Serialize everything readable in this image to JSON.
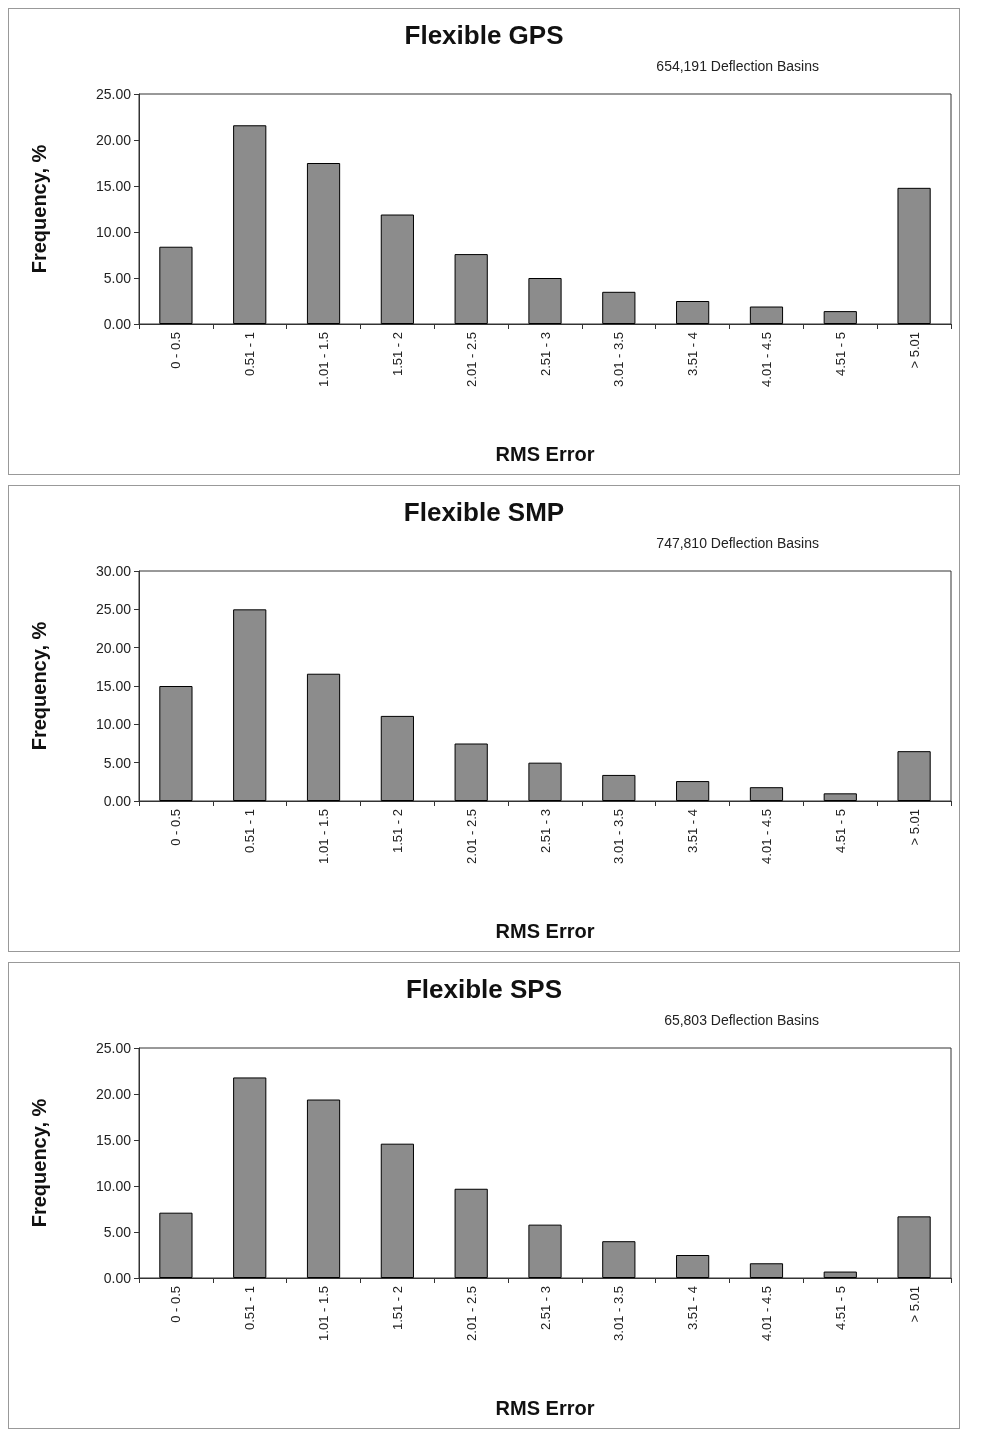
{
  "chart_data": [
    {
      "type": "bar",
      "title": "Flexible GPS",
      "xlabel": "RMS Error",
      "ylabel": "Frequency, %",
      "annotations": [
        "654,191 Deflection Basins"
      ],
      "categories": [
        "0 - 0.5",
        "0.51 - 1",
        "1.01 - 1.5",
        "1.51 - 2",
        "2.01 - 2.5",
        "2.51 - 3",
        "3.01 - 3.5",
        "3.51 - 4",
        "4.01 - 4.5",
        "4.51 - 5",
        "> 5.01"
      ],
      "values": [
        8.4,
        21.6,
        17.5,
        11.9,
        7.6,
        5.0,
        3.5,
        2.5,
        1.9,
        1.4,
        14.8
      ],
      "color": "#8c8c8c",
      "ylim": [
        0,
        25
      ],
      "yticks": [
        {
          "value": 0,
          "label": "0.00"
        },
        {
          "value": 5,
          "label": "5.00"
        },
        {
          "value": 10,
          "label": "10.00"
        },
        {
          "value": 15,
          "label": "15.00"
        },
        {
          "value": 20,
          "label": "20.00"
        },
        {
          "value": 25,
          "label": "25.00"
        }
      ],
      "grid": false
    },
    {
      "type": "bar",
      "title": "Flexible SMP",
      "xlabel": "RMS Error",
      "ylabel": "Frequency, %",
      "annotations": [
        "747,810 Deflection Basins"
      ],
      "categories": [
        "0 - 0.5",
        "0.51 - 1",
        "1.01 - 1.5",
        "1.51 - 2",
        "2.01 - 2.5",
        "2.51 - 3",
        "3.01 - 3.5",
        "3.51 - 4",
        "4.01 - 4.5",
        "4.51 - 5",
        "> 5.01"
      ],
      "values": [
        15.0,
        25.0,
        16.6,
        11.1,
        7.5,
        5.0,
        3.4,
        2.6,
        1.8,
        1.0,
        6.5
      ],
      "color": "#8c8c8c",
      "ylim": [
        0,
        30
      ],
      "yticks": [
        {
          "value": 0,
          "label": "0.00"
        },
        {
          "value": 5,
          "label": "5.00"
        },
        {
          "value": 10,
          "label": "10.00"
        },
        {
          "value": 15,
          "label": "15.00"
        },
        {
          "value": 20,
          "label": "20.00"
        },
        {
          "value": 25,
          "label": "25.00"
        },
        {
          "value": 30,
          "label": "30.00"
        }
      ],
      "grid": false
    },
    {
      "type": "bar",
      "title": "Flexible SPS",
      "xlabel": "RMS Error",
      "ylabel": "Frequency, %",
      "annotations": [
        "65,803 Deflection Basins"
      ],
      "categories": [
        "0 - 0.5",
        "0.51 - 1",
        "1.01 - 1.5",
        "1.51 - 2",
        "2.01 - 2.5",
        "2.51 - 3",
        "3.01 - 3.5",
        "3.51 - 4",
        "4.01 - 4.5",
        "4.51 - 5",
        "> 5.01"
      ],
      "values": [
        7.1,
        21.8,
        19.4,
        14.6,
        9.7,
        5.8,
        4.0,
        2.5,
        1.6,
        0.7,
        6.7
      ],
      "color": "#8c8c8c",
      "ylim": [
        0,
        25
      ],
      "yticks": [
        {
          "value": 0,
          "label": "0.00"
        },
        {
          "value": 5,
          "label": "5.00"
        },
        {
          "value": 10,
          "label": "10.00"
        },
        {
          "value": 15,
          "label": "15.00"
        },
        {
          "value": 20,
          "label": "20.00"
        },
        {
          "value": 25,
          "label": "25.00"
        }
      ],
      "grid": false
    }
  ]
}
